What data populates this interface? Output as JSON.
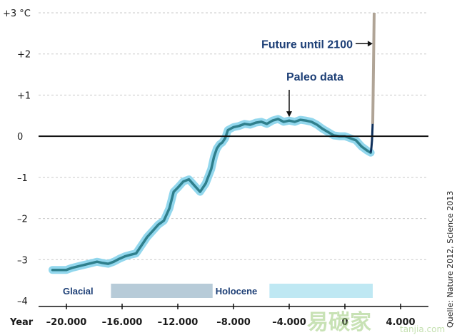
{
  "chart_data": {
    "type": "line",
    "title": "",
    "xlabel": "Year",
    "ylabel": "",
    "unit": "°C",
    "xlim": [
      -22000,
      6000
    ],
    "ylim": [
      -4,
      3
    ],
    "grid": true,
    "x_ticks": [
      -20000,
      -16000,
      -12000,
      -8000,
      -4000,
      0,
      4000
    ],
    "x_tick_labels": [
      "–20.000",
      "–16.000",
      "–12.000",
      "–8.000",
      "–4.000",
      "0",
      "4.000"
    ],
    "y_ticks": [
      3,
      2,
      1,
      0,
      -1,
      -2,
      -3,
      -4
    ],
    "y_tick_labels": [
      "+3 °C",
      "+2",
      "+1",
      "0",
      "–1",
      "–2",
      "–3",
      "–4"
    ],
    "series": [
      {
        "name": "Paleo data",
        "color": "#2f7f8c",
        "glow_color": "#7fd0ea",
        "x": [
          -21000,
          -20400,
          -20000,
          -19600,
          -19000,
          -18400,
          -17800,
          -17400,
          -17000,
          -16600,
          -16200,
          -15800,
          -15400,
          -15000,
          -14600,
          -14200,
          -13800,
          -13400,
          -13000,
          -12600,
          -12300,
          -12000,
          -11600,
          -11200,
          -10800,
          -10400,
          -10000,
          -9600,
          -9400,
          -9200,
          -9000,
          -8800,
          -8600,
          -8400,
          -8000,
          -7600,
          -7200,
          -6800,
          -6400,
          -6000,
          -5600,
          -5200,
          -4800,
          -4400,
          -4000,
          -3600,
          -3200,
          -2800,
          -2400,
          -2000,
          -1600,
          -1200,
          -800,
          -400,
          0,
          400,
          800,
          1200,
          1600,
          1850
        ],
        "y": [
          -3.25,
          -3.25,
          -3.25,
          -3.2,
          -3.15,
          -3.1,
          -3.05,
          -3.08,
          -3.1,
          -3.05,
          -2.98,
          -2.92,
          -2.88,
          -2.85,
          -2.65,
          -2.45,
          -2.3,
          -2.15,
          -2.05,
          -1.75,
          -1.35,
          -1.25,
          -1.1,
          -1.05,
          -1.2,
          -1.35,
          -1.15,
          -0.8,
          -0.5,
          -0.3,
          -0.2,
          -0.15,
          -0.05,
          0.15,
          0.22,
          0.25,
          0.3,
          0.28,
          0.33,
          0.35,
          0.3,
          0.38,
          0.42,
          0.35,
          0.38,
          0.35,
          0.4,
          0.38,
          0.35,
          0.28,
          0.18,
          0.1,
          0.02,
          0.0,
          0.0,
          -0.05,
          -0.1,
          -0.25,
          -0.35,
          -0.4
        ]
      },
      {
        "name": "Future until 2100",
        "color": "#b0a496",
        "x": [
          2000,
          2100
        ],
        "y": [
          0.3,
          3.0
        ]
      }
    ],
    "instrumental": {
      "color": "#0e2f5a",
      "x": [
        1850,
        1900,
        1950,
        2000,
        2013
      ],
      "y": [
        -0.4,
        -0.3,
        -0.1,
        0.35,
        0.55
      ]
    },
    "periods": [
      {
        "label": "Glacial",
        "start": -22000,
        "end": -9500,
        "color": "#b7cbd8"
      },
      {
        "label": "Holocene",
        "start": -9500,
        "end": 2000,
        "color": "#bfe8f3"
      }
    ],
    "annotations": [
      {
        "text": "Future until 2100",
        "target_x": 2100,
        "target_y": 2.25
      },
      {
        "text": "Paleo data",
        "target_x": -4000,
        "target_y": 0.45
      }
    ],
    "source": "Quelle: Nature 2012, Science 2013"
  },
  "watermark": {
    "text": "易碳家",
    "subtext": "tanjia.com"
  }
}
